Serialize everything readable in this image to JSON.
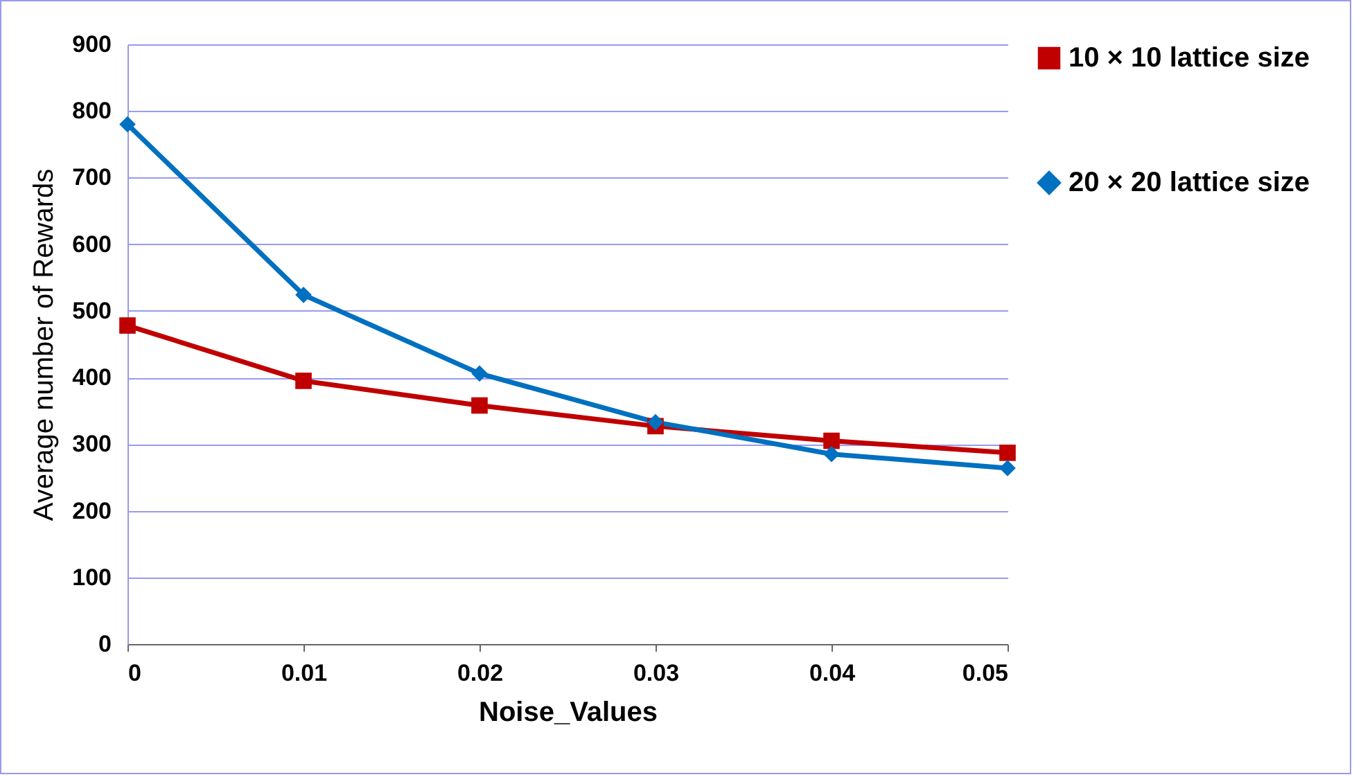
{
  "chart_data": {
    "type": "line",
    "xlabel": "Noise_Values",
    "ylabel": "Average number of Rewards",
    "x": [
      0,
      0.01,
      0.02,
      0.03,
      0.04,
      0.05
    ],
    "series": [
      {
        "name": "10 × 10 lattice size",
        "color": "#c00000",
        "marker": "square",
        "values": [
          478,
          395,
          358,
          327,
          305,
          287
        ]
      },
      {
        "name": "20 × 20 lattice size",
        "color": "#0070c0",
        "marker": "diamond",
        "values": [
          780,
          524,
          406,
          333,
          285,
          264
        ]
      }
    ],
    "xlim": [
      0,
      0.05
    ],
    "xticks": [
      0,
      0.01,
      0.02,
      0.03,
      0.04,
      0.05
    ],
    "ylim": [
      0,
      900
    ],
    "yticks": [
      0,
      100,
      200,
      300,
      400,
      500,
      600,
      700,
      800,
      900
    ],
    "grid": "y",
    "legend": "right",
    "line_style": "solid"
  }
}
